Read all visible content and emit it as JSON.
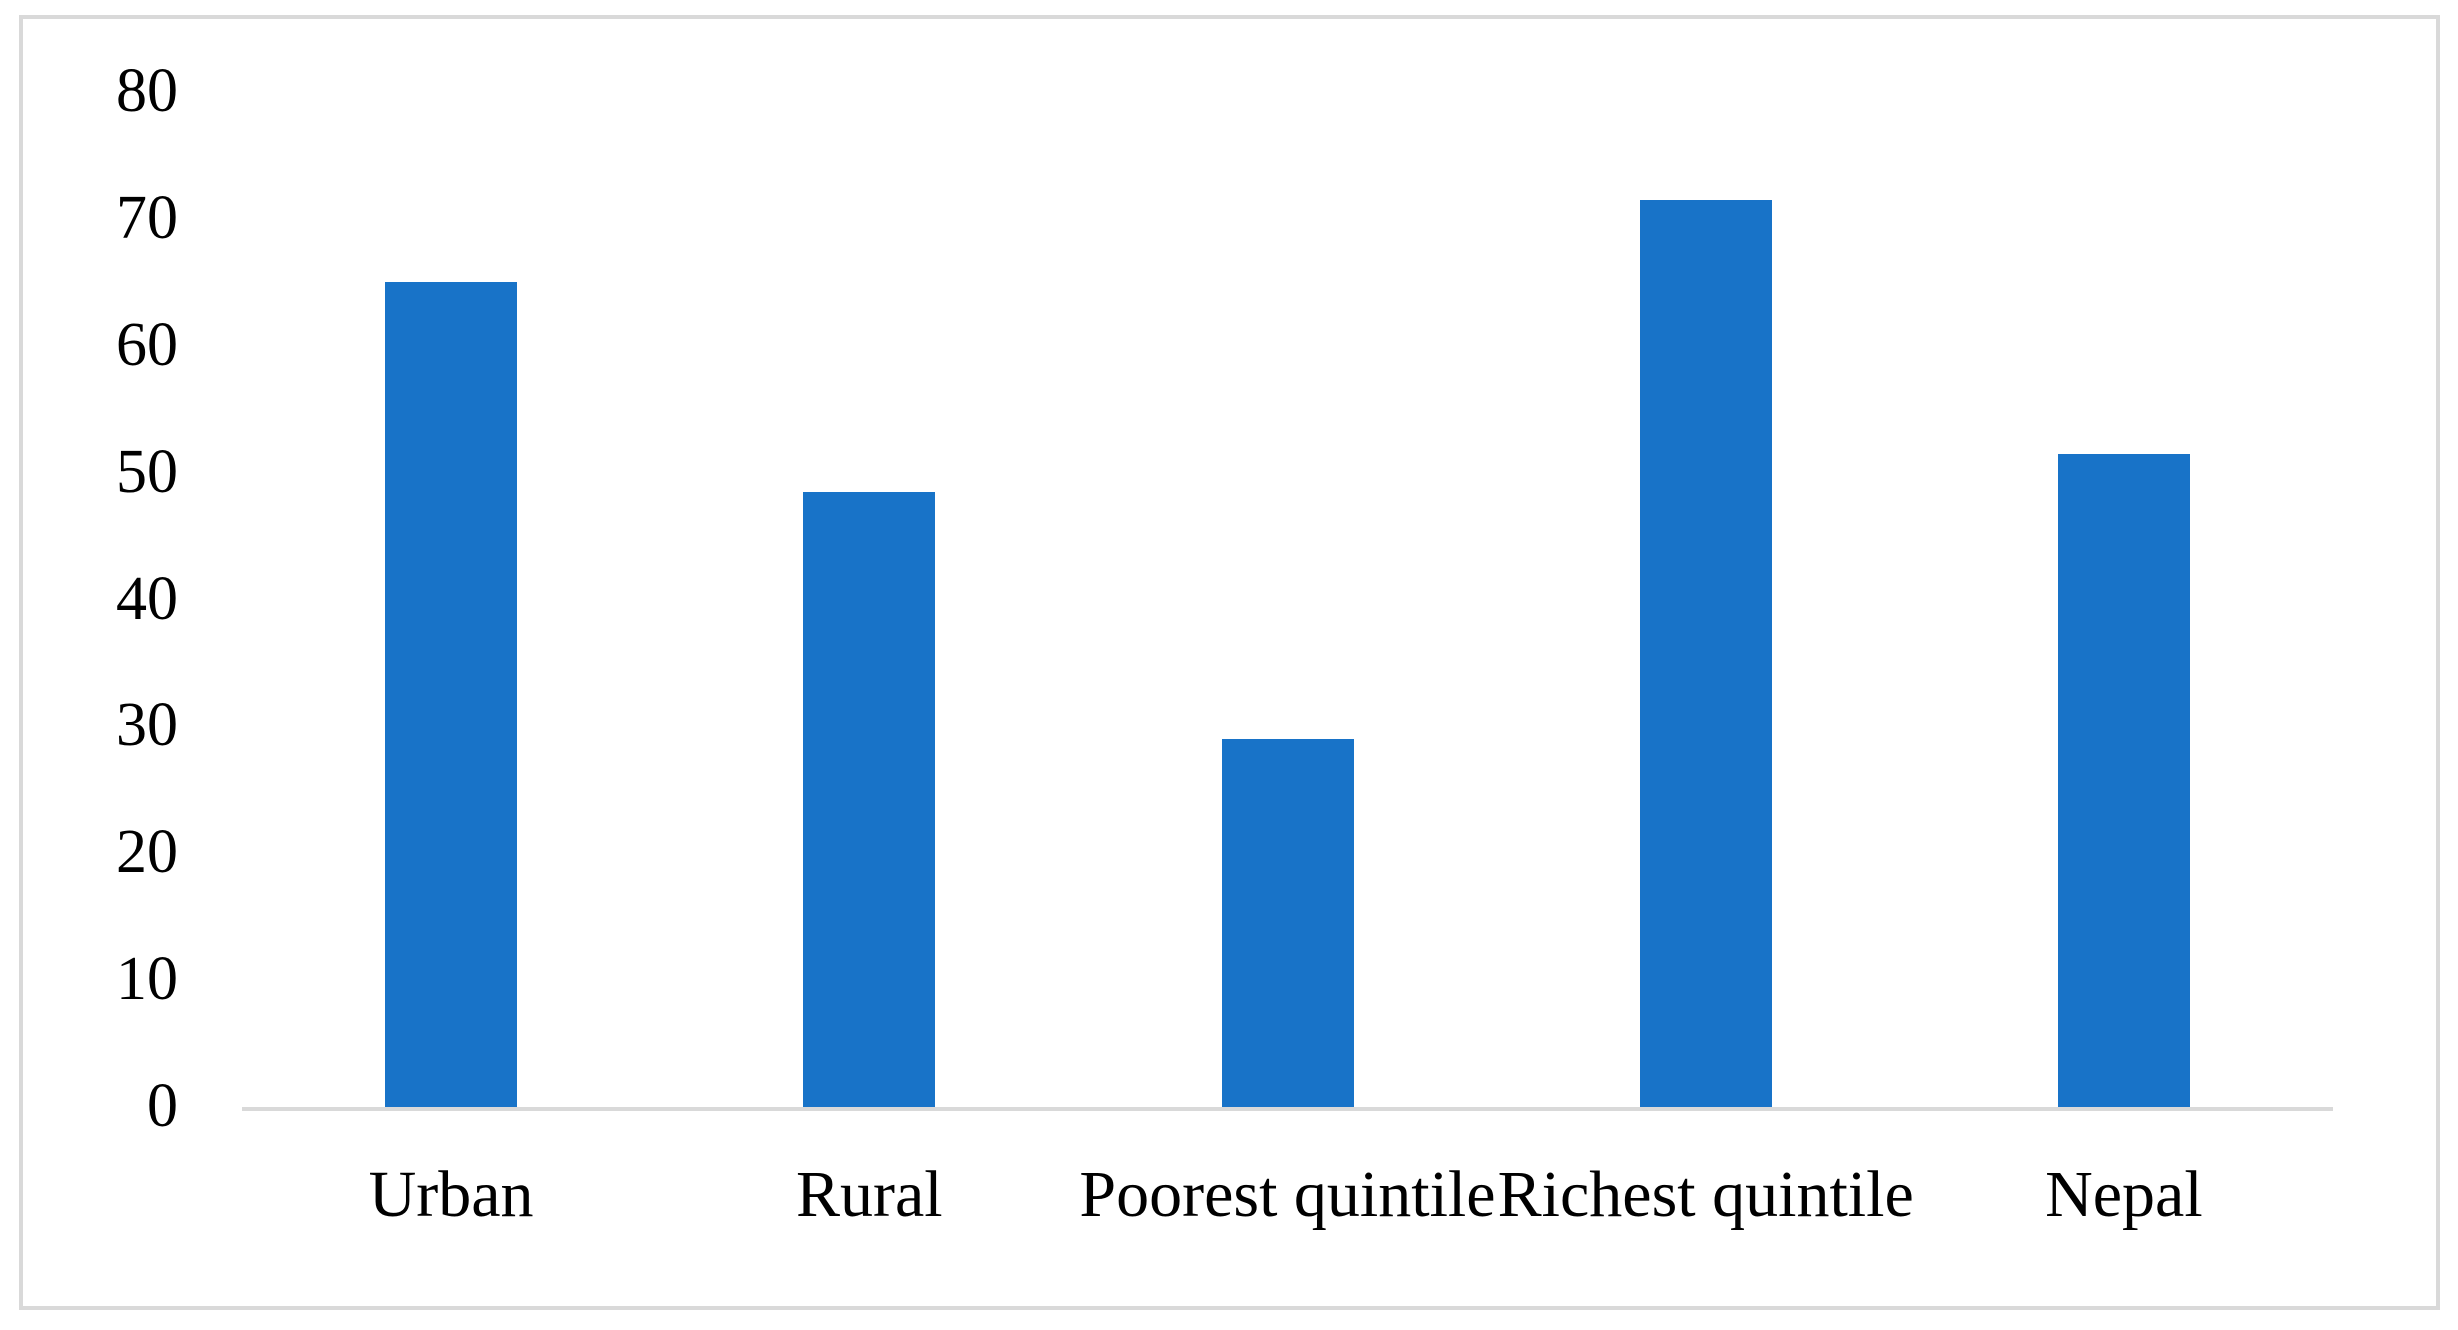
{
  "chart_data": {
    "type": "bar",
    "categories": [
      "Urban",
      "Rural",
      "Poorest quintile",
      "Richest quintile",
      "Nepal"
    ],
    "values": [
      65,
      48.5,
      29,
      71.5,
      51.5
    ],
    "title": "",
    "xlabel": "",
    "ylabel": "",
    "ylim": [
      0,
      80
    ],
    "yticks": [
      0,
      10,
      20,
      30,
      40,
      50,
      60,
      70,
      80
    ],
    "grid": false,
    "legend": false,
    "colors": {
      "bar": "#1873C8",
      "axis_line": "#D9D9D9",
      "frame_border": "#D9D9D9",
      "text": "#000000",
      "background": "#FFFFFF"
    }
  }
}
